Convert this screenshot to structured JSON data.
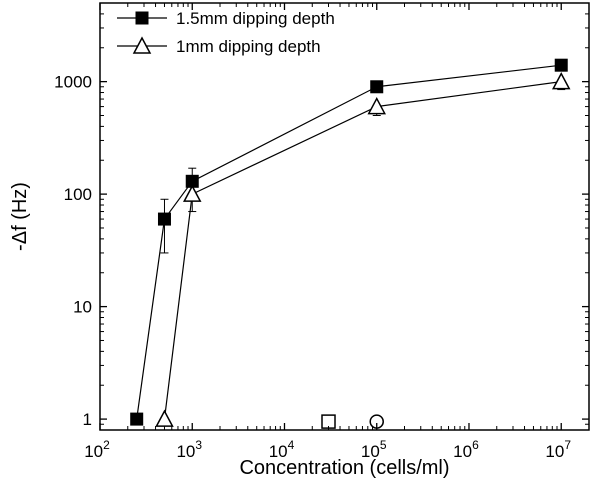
{
  "chart_data": {
    "type": "line",
    "title": "",
    "xlabel": "Concentration (cells/ml)",
    "ylabel": "-Δf (Hz)",
    "xscale": "log",
    "yscale": "log",
    "xlim": [
      100,
      20000000
    ],
    "ylim": [
      0.8,
      5000
    ],
    "x_ticks": [
      {
        "value": 100,
        "base": "10",
        "exp": "2"
      },
      {
        "value": 1000,
        "base": "10",
        "exp": "3"
      },
      {
        "value": 10000,
        "base": "10",
        "exp": "4"
      },
      {
        "value": 100000,
        "base": "10",
        "exp": "5"
      },
      {
        "value": 1000000,
        "base": "10",
        "exp": "6"
      },
      {
        "value": 10000000,
        "base": "10",
        "exp": "7"
      }
    ],
    "y_ticks": [
      {
        "value": 1,
        "label": "1"
      },
      {
        "value": 10,
        "label": "10"
      },
      {
        "value": 100,
        "label": "100"
      },
      {
        "value": 1000,
        "label": "1000"
      }
    ],
    "grid": false,
    "legend_position": "top-left",
    "series": [
      {
        "name": "1.5mm dipping depth",
        "marker": "filled-square",
        "x": [
          250,
          500,
          1000,
          100000,
          10000000
        ],
        "y": [
          1,
          60,
          130,
          900,
          1400
        ],
        "error_lower": [
          null,
          30,
          90,
          null,
          null
        ],
        "error_upper": [
          null,
          90,
          170,
          null,
          null
        ]
      },
      {
        "name": "1mm dipping depth",
        "marker": "open-triangle",
        "x": [
          500,
          1000,
          100000,
          10000000
        ],
        "y": [
          1,
          100,
          600,
          1000
        ],
        "error_lower": [
          null,
          70,
          500,
          850
        ],
        "error_upper": [
          null,
          null,
          null,
          null
        ]
      }
    ],
    "extra_points": [
      {
        "marker": "open-square",
        "x": 30000,
        "y": 0.95
      },
      {
        "marker": "open-circle",
        "x": 100000,
        "y": 0.95
      }
    ]
  }
}
